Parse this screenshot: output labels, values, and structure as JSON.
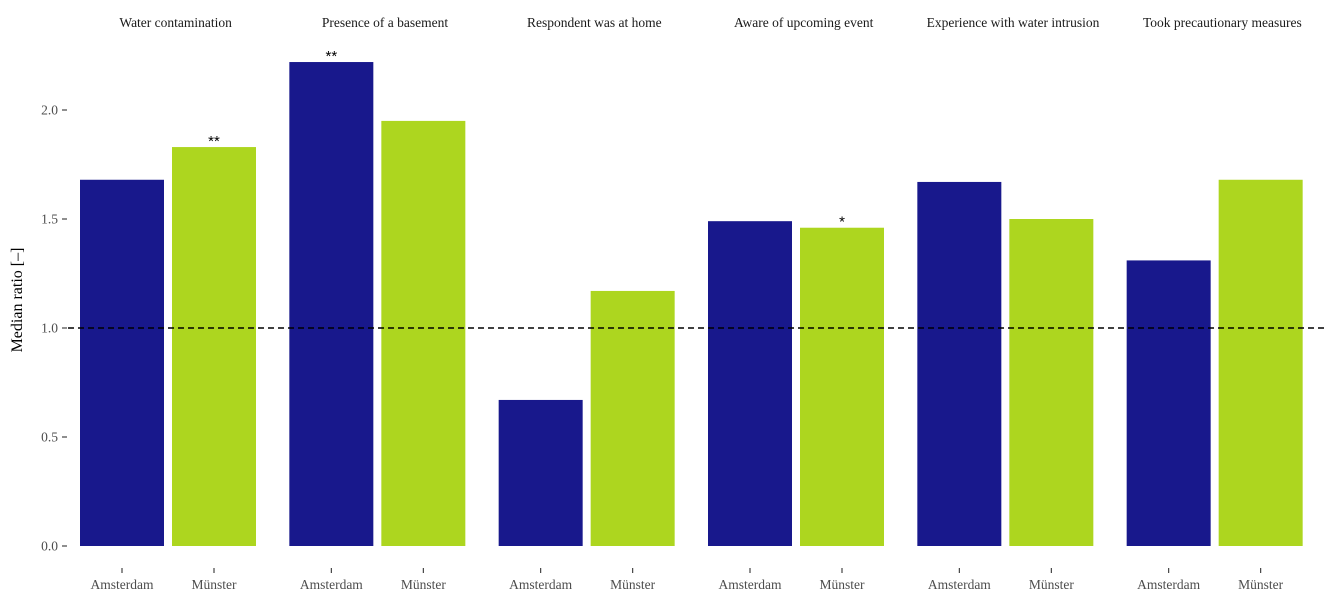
{
  "chart_data": {
    "type": "bar",
    "ylabel": "Median ratio [–]",
    "xlabel": "",
    "ylim": [
      0,
      2.2
    ],
    "yticks": [
      "0.0",
      "0.5",
      "1.0",
      "1.5",
      "2.0"
    ],
    "ytick_values": [
      0,
      0.5,
      1.0,
      1.5,
      2.0
    ],
    "reference_line": 1.0,
    "grid": false,
    "legend": "none",
    "colors": {
      "Amsterdam": "#18188c",
      "Münster": "#add61f"
    },
    "groups": [
      "Amsterdam",
      "Münster"
    ],
    "facets": [
      {
        "title": "Water contamination",
        "values": [
          1.68,
          1.83
        ],
        "significance": [
          "",
          "**"
        ]
      },
      {
        "title": "Presence of a basement",
        "values": [
          2.22,
          1.95
        ],
        "significance": [
          "**",
          ""
        ]
      },
      {
        "title": "Respondent was at home",
        "values": [
          0.67,
          1.17
        ],
        "significance": [
          "",
          ""
        ]
      },
      {
        "title": "Aware of upcoming event",
        "values": [
          1.49,
          1.46
        ],
        "significance": [
          "",
          "*"
        ]
      },
      {
        "title": "Experience with water intrusion",
        "values": [
          1.67,
          1.5
        ],
        "significance": [
          "",
          ""
        ]
      },
      {
        "title": "Took precautionary measures",
        "values": [
          1.31,
          1.68
        ],
        "significance": [
          "",
          ""
        ]
      }
    ]
  }
}
